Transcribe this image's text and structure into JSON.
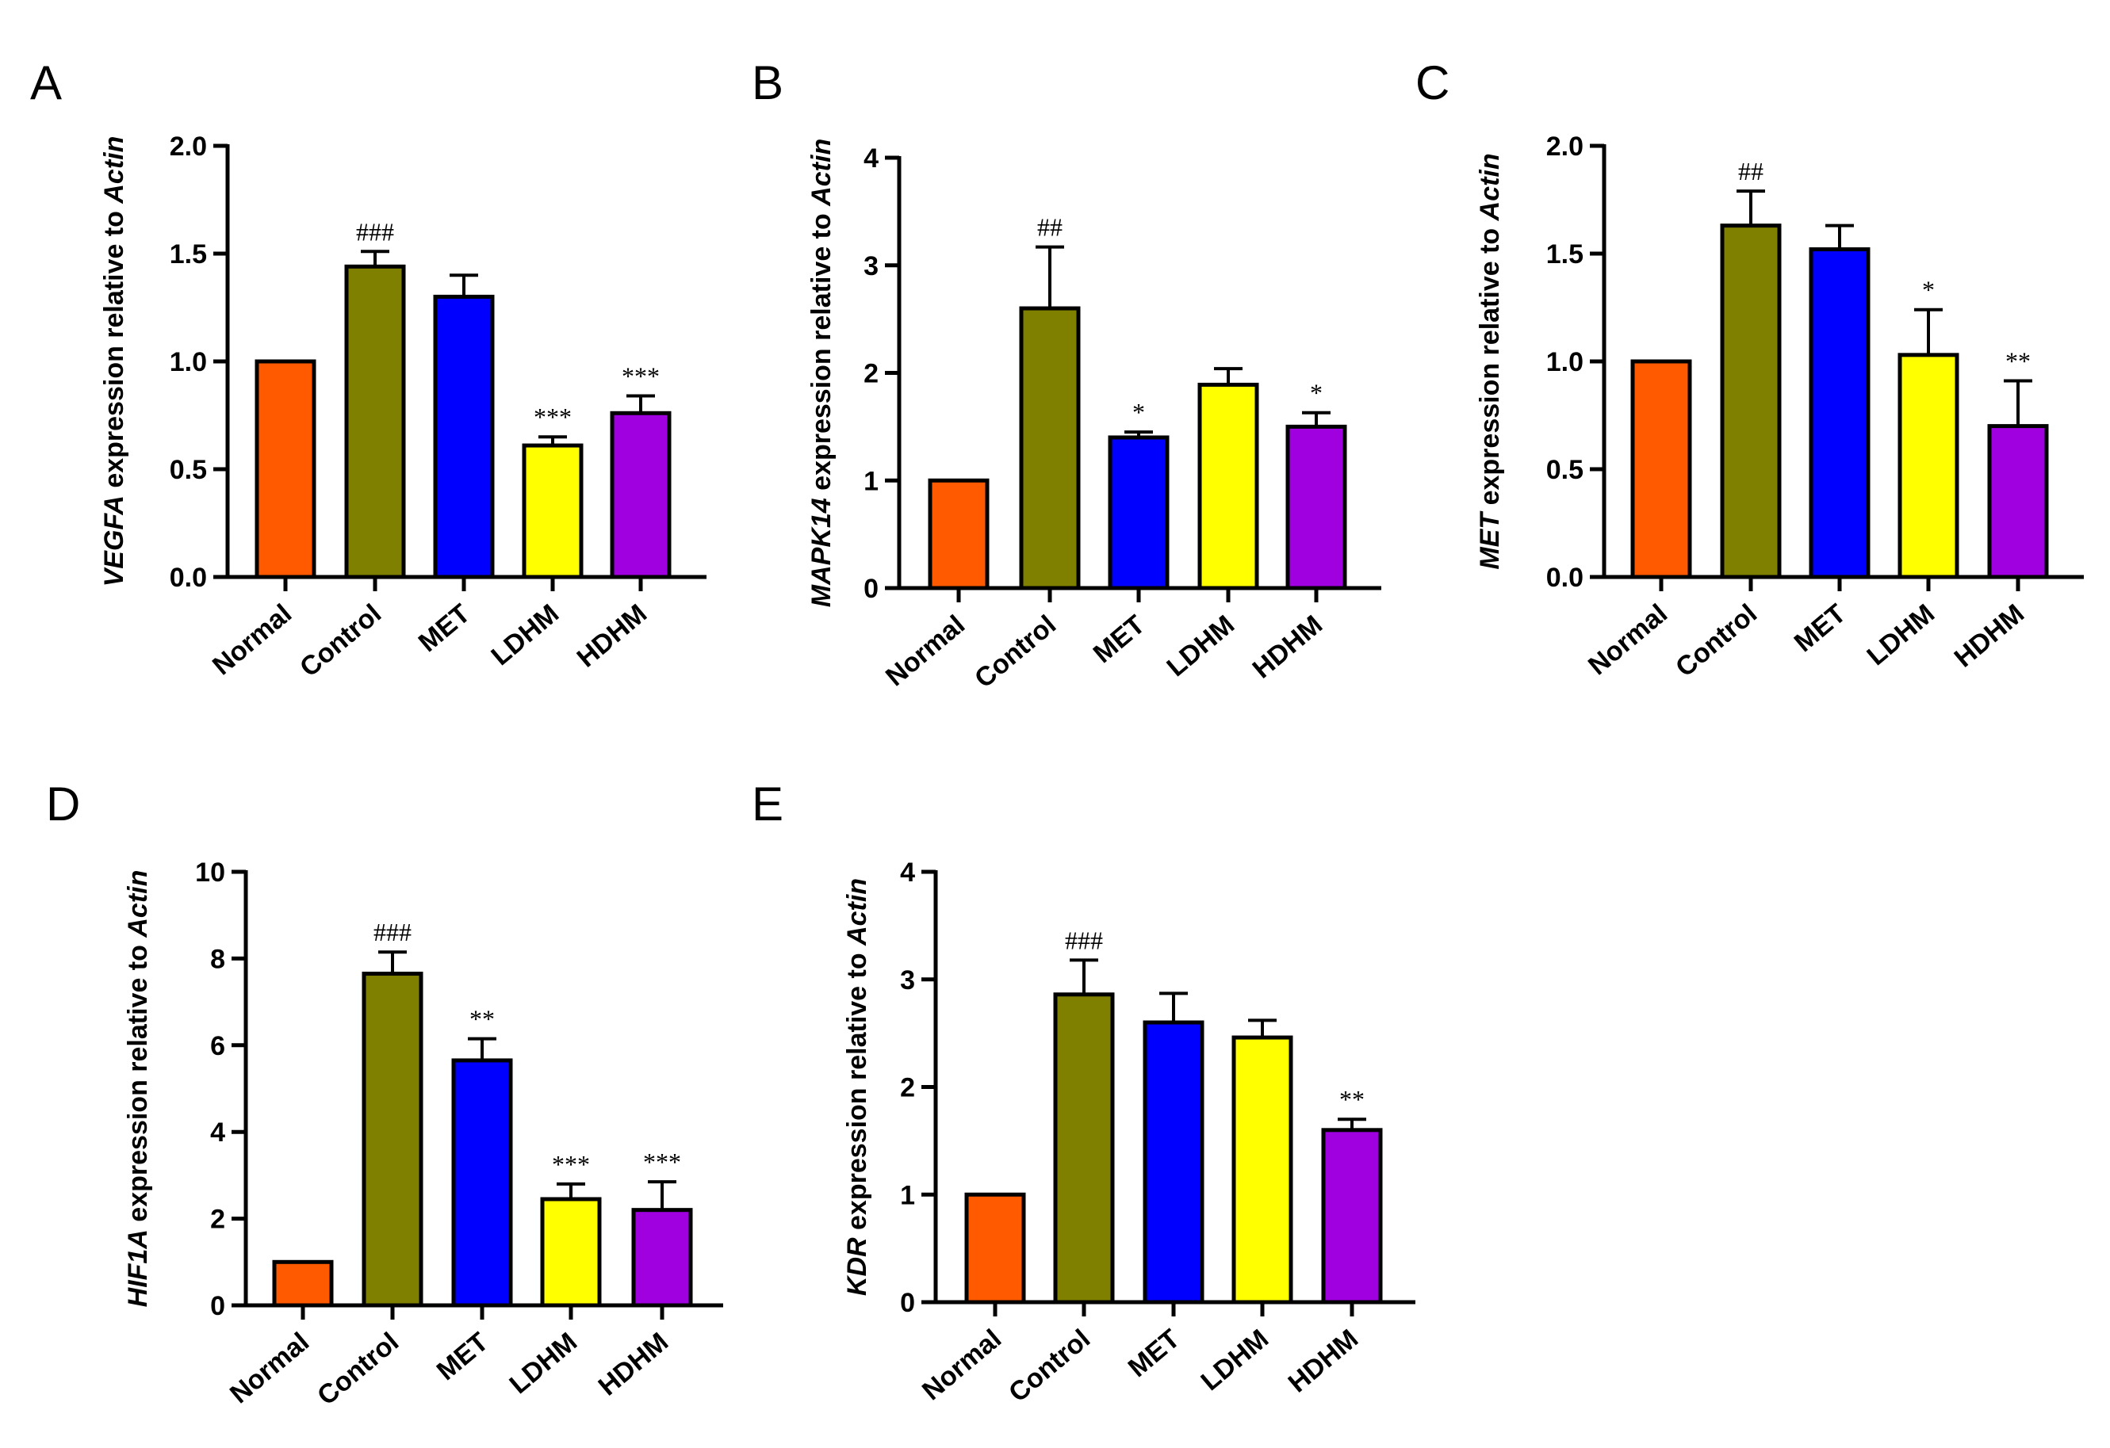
{
  "chart_data": [
    {
      "panel": "A",
      "type": "bar",
      "gene": "VEGFA",
      "ylabel_rest": " expression relative to ",
      "ylabel_ref": "Actin",
      "categories": [
        "Normal",
        "Control",
        "MET",
        "LDHM",
        "HDHM"
      ],
      "values": [
        1.0,
        1.44,
        1.3,
        0.61,
        0.76
      ],
      "errors": [
        0,
        0.07,
        0.1,
        0.04,
        0.08
      ],
      "significance": [
        "",
        "###",
        "",
        "***",
        "***"
      ],
      "ylim": [
        0,
        2.0
      ],
      "yticks": [
        "0.0",
        "0.5",
        "1.0",
        "1.5",
        "2.0"
      ]
    },
    {
      "panel": "B",
      "type": "bar",
      "gene": "MAPK14",
      "ylabel_rest": " expression relative to ",
      "ylabel_ref": "Actin",
      "categories": [
        "Normal",
        "Control",
        "MET",
        "LDHM",
        "HDHM"
      ],
      "values": [
        1.0,
        2.6,
        1.4,
        1.89,
        1.5
      ],
      "errors": [
        0,
        0.57,
        0.05,
        0.15,
        0.13
      ],
      "significance": [
        "",
        "##",
        "*",
        "",
        "*"
      ],
      "ylim": [
        0,
        4
      ],
      "yticks": [
        "0",
        "1",
        "2",
        "3",
        "4"
      ]
    },
    {
      "panel": "C",
      "type": "bar",
      "gene": "MET",
      "ylabel_rest": " expression relative to ",
      "ylabel_ref": "Actin",
      "categories": [
        "Normal",
        "Control",
        "MET",
        "LDHM",
        "HDHM"
      ],
      "values": [
        1.0,
        1.63,
        1.52,
        1.03,
        0.7
      ],
      "errors": [
        0,
        0.16,
        0.11,
        0.21,
        0.21
      ],
      "significance": [
        "",
        "##",
        "",
        "*",
        "**"
      ],
      "ylim": [
        0,
        2.0
      ],
      "yticks": [
        "0.0",
        "0.5",
        "1.0",
        "1.5",
        "2.0"
      ]
    },
    {
      "panel": "D",
      "type": "bar",
      "gene": "HIF1A",
      "ylabel_rest": " expression relative to ",
      "ylabel_ref": "Actin",
      "categories": [
        "Normal",
        "Control",
        "MET",
        "LDHM",
        "HDHM"
      ],
      "values": [
        1.0,
        7.65,
        5.65,
        2.45,
        2.2
      ],
      "errors": [
        0,
        0.5,
        0.5,
        0.35,
        0.65
      ],
      "significance": [
        "",
        "###",
        "**",
        "***",
        "***"
      ],
      "ylim": [
        0,
        10
      ],
      "yticks": [
        "0",
        "2",
        "4",
        "6",
        "8",
        "10"
      ]
    },
    {
      "panel": "E",
      "type": "bar",
      "gene": "KDR",
      "ylabel_rest": " expression relative to ",
      "ylabel_ref": "Actin",
      "categories": [
        "Normal",
        "Control",
        "MET",
        "LDHM",
        "HDHM"
      ],
      "values": [
        1.0,
        2.86,
        2.6,
        2.46,
        1.6
      ],
      "errors": [
        0,
        0.32,
        0.27,
        0.16,
        0.1
      ],
      "significance": [
        "",
        "###",
        "",
        "",
        "**"
      ],
      "ylim": [
        0,
        4
      ],
      "yticks": [
        "0",
        "1",
        "2",
        "3",
        "4"
      ]
    }
  ],
  "colors": [
    "#ff5a00",
    "#7f7f00",
    "#0000ff",
    "#ffff00",
    "#a000e0"
  ]
}
